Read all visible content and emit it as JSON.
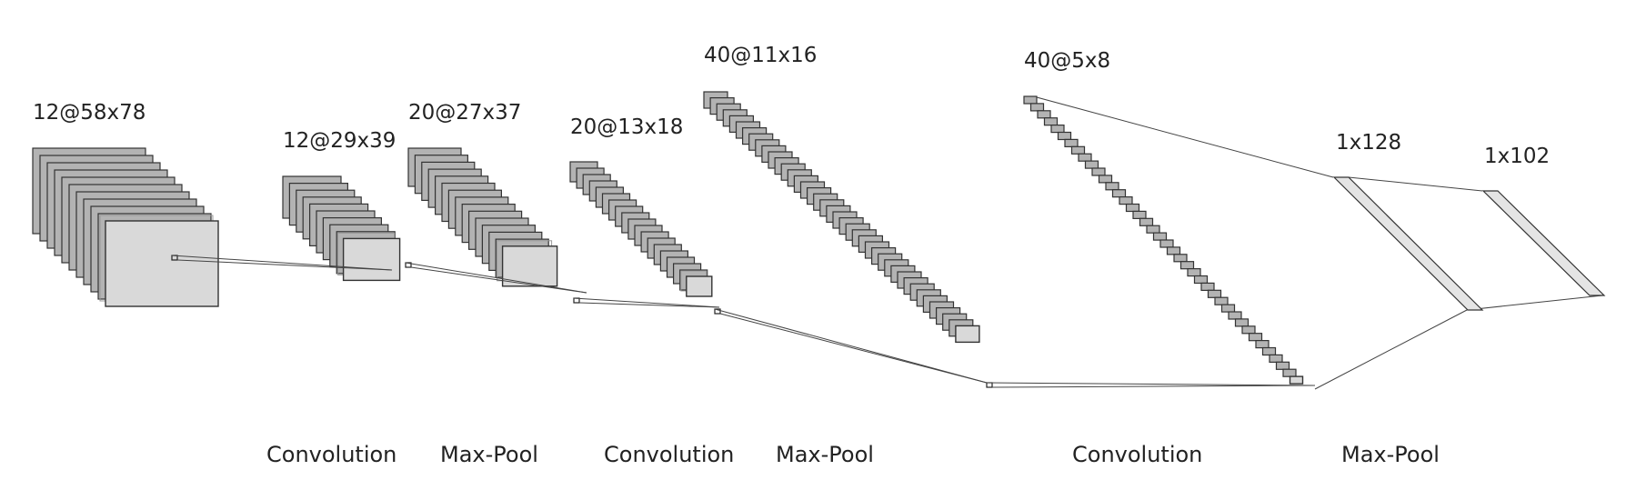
{
  "layers": [
    {
      "label": "12@58x78",
      "maps": 12
    },
    {
      "label": "12@29x39",
      "maps": 12
    },
    {
      "label": "20@27x37",
      "maps": 20
    },
    {
      "label": "20@13x18",
      "maps": 20
    },
    {
      "label": "40@11x16",
      "maps": 40
    },
    {
      "label": "40@5x8",
      "maps": 40
    }
  ],
  "dense": [
    {
      "label": "1x128",
      "units": 128
    },
    {
      "label": "1x102",
      "units": 102
    }
  ],
  "operations": [
    "Convolution",
    "Max-Pool",
    "Convolution",
    "Max-Pool",
    "Convolution",
    "Max-Pool"
  ]
}
